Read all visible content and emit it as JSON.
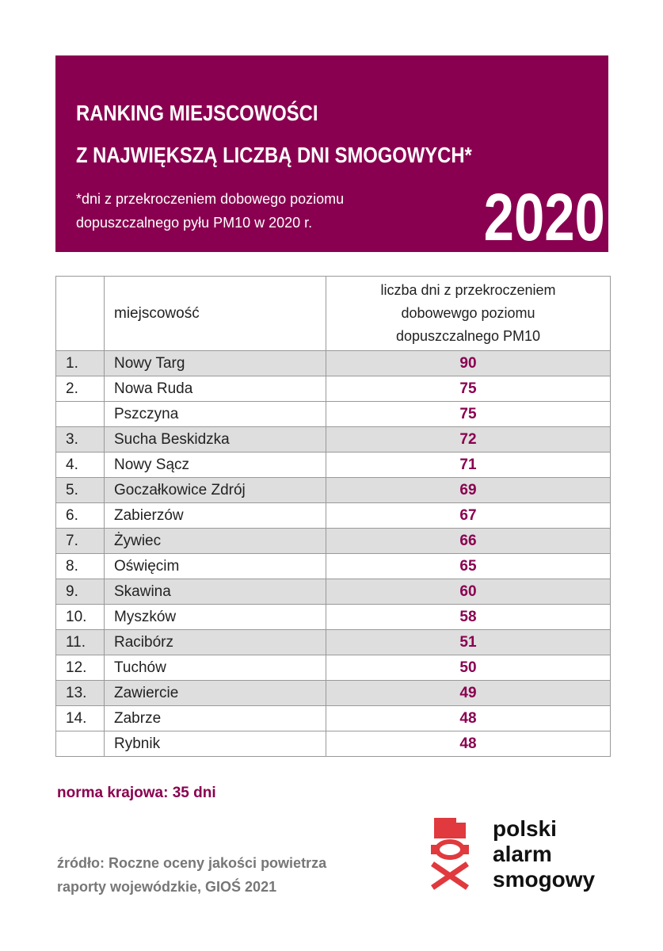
{
  "header": {
    "title_lines": [
      "RANKING MIEJSCOWOŚCI",
      "Z NAJWIĘKSZĄ LICZBĄ DNI SMOGOWYCH*"
    ],
    "subtitle_lines": [
      "*dni z przekroczeniem dobowego poziomu",
      "dopuszczalnego pyłu PM10 w 2020 r."
    ],
    "year": "2020"
  },
  "table": {
    "name_header": "miejscowość",
    "value_header_lines": [
      "liczba dni z przekroczeniem",
      "dobowewgo poziomu",
      "dopuszczalnego PM10"
    ],
    "rows": [
      {
        "rank": "1.",
        "name": "Nowy Targ",
        "value": 90
      },
      {
        "rank": "2.",
        "name": "Nowa Ruda",
        "value": 75
      },
      {
        "name": "Pszczyna",
        "value": 75
      },
      {
        "rank": "3.",
        "name": "Sucha Beskidzka",
        "value": 72
      },
      {
        "rank": "4.",
        "name": "Nowy Sącz",
        "value": 71
      },
      {
        "rank": "5.",
        "name": "Goczałkowice Zdrój",
        "value": 69
      },
      {
        "rank": "6.",
        "name": "Zabierzów",
        "value": 67
      },
      {
        "rank": "7.",
        "name": "Żywiec",
        "value": 66
      },
      {
        "rank": "8.",
        "name": "Oświęcim",
        "value": 65
      },
      {
        "rank": "9.",
        "name": "Skawina",
        "value": 60
      },
      {
        "rank": "10.",
        "name": "Myszków",
        "value": 58
      },
      {
        "rank": "11.",
        "name": "Racibórz",
        "value": 51
      },
      {
        "rank": "12.",
        "name": "Tuchów",
        "value": 50
      },
      {
        "rank": "13.",
        "name": "Zawiercie",
        "value": 49
      },
      {
        "rank": "14.",
        "name": "Zabrze",
        "value": 48
      },
      {
        "name": "Rybnik",
        "value": 48
      }
    ]
  },
  "footer": {
    "norm": "norma krajowa: 35 dni",
    "source_lines": [
      "źródło: Roczne oceny jakości powietrza",
      "raporty wojewódzkie, GIOŚ 2021"
    ],
    "logo_lines": [
      "polski",
      "alarm",
      "smogowy"
    ]
  }
}
